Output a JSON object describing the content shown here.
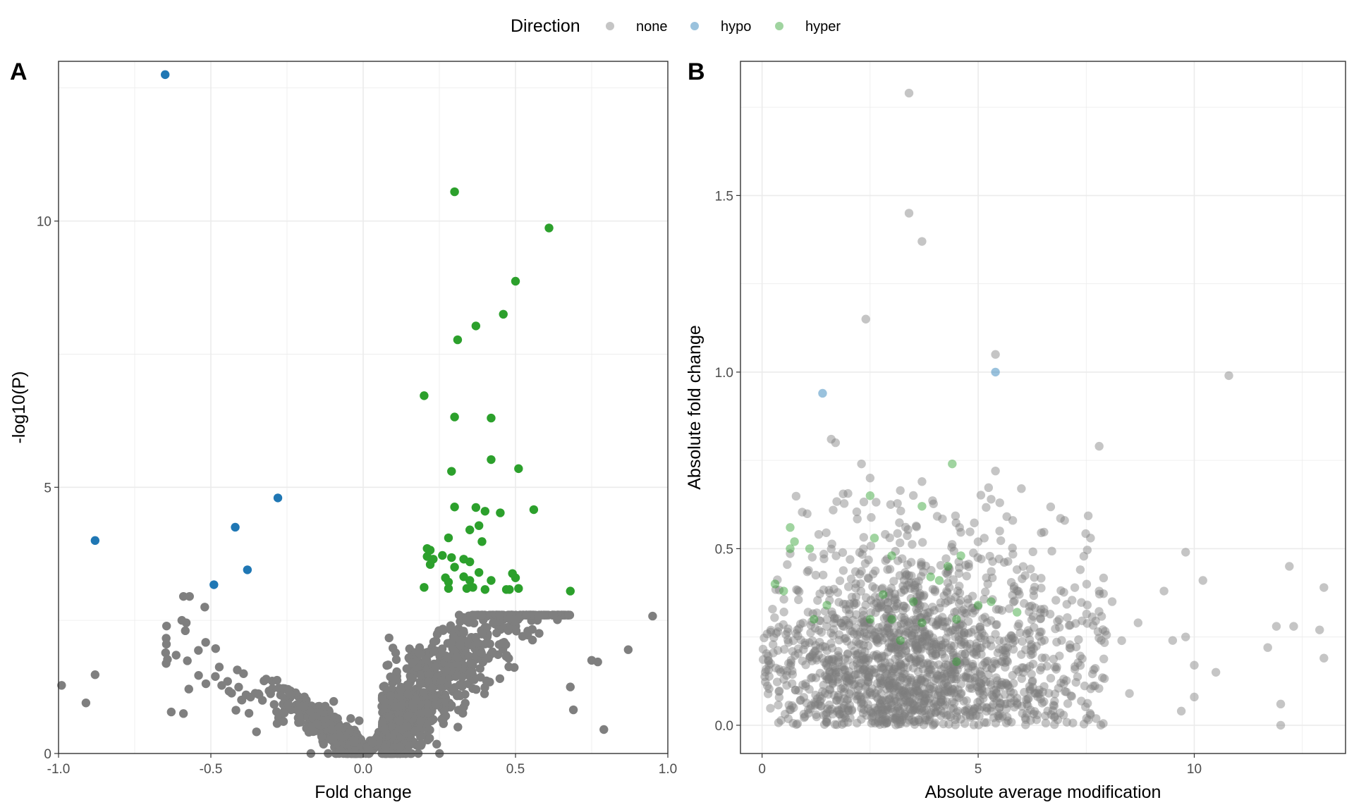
{
  "legend": {
    "title": "Direction",
    "items": [
      {
        "label": "none",
        "color": "#7f7f7f"
      },
      {
        "label": "hypo",
        "color": "#1f77b4"
      },
      {
        "label": "hyper",
        "color": "#2ca02c"
      }
    ],
    "placement": "top-center"
  },
  "chart_data": [
    {
      "panel": "A",
      "type": "scatter",
      "xlabel": "Fold change",
      "ylabel": "-log10(P)",
      "xlim": [
        -1.0,
        1.0
      ],
      "ylim": [
        0,
        13
      ],
      "xticks": [
        -1.0,
        -0.5,
        0.0,
        0.5,
        1.0
      ],
      "xtick_labels": [
        "-1.0",
        "-0.5",
        "0.0",
        "0.5",
        "1.0"
      ],
      "yticks": [
        0,
        5,
        10
      ],
      "ytick_labels": [
        "0",
        "5",
        "10"
      ],
      "grid": true,
      "point_alpha": 1.0,
      "background_cloud": {
        "direction": "none",
        "n": 1400,
        "note": "dense non-significant points forming V shape near origin"
      },
      "series": [
        {
          "name": "hypo",
          "color": "#1f77b4",
          "points": [
            [
              -0.65,
              12.75
            ],
            [
              -0.88,
              4.0
            ],
            [
              -0.42,
              4.25
            ],
            [
              -0.28,
              4.8
            ],
            [
              -0.38,
              3.45
            ],
            [
              -0.49,
              3.17
            ]
          ]
        },
        {
          "name": "hyper",
          "color": "#2ca02c",
          "points": [
            [
              0.3,
              10.55
            ],
            [
              0.61,
              9.87
            ],
            [
              0.5,
              8.87
            ],
            [
              0.46,
              8.25
            ],
            [
              0.37,
              8.03
            ],
            [
              0.31,
              7.77
            ],
            [
              0.2,
              6.72
            ],
            [
              0.3,
              6.32
            ],
            [
              0.42,
              6.3
            ],
            [
              0.42,
              5.52
            ],
            [
              0.51,
              5.35
            ],
            [
              0.29,
              5.3
            ],
            [
              0.3,
              4.63
            ],
            [
              0.37,
              4.62
            ],
            [
              0.4,
              4.55
            ],
            [
              0.45,
              4.52
            ],
            [
              0.56,
              4.58
            ],
            [
              0.38,
              4.28
            ],
            [
              0.35,
              4.2
            ],
            [
              0.28,
              4.05
            ],
            [
              0.39,
              3.98
            ],
            [
              0.21,
              3.85
            ],
            [
              0.22,
              3.82
            ],
            [
              0.21,
              3.7
            ],
            [
              0.23,
              3.65
            ],
            [
              0.26,
              3.72
            ],
            [
              0.29,
              3.68
            ],
            [
              0.33,
              3.65
            ],
            [
              0.35,
              3.6
            ],
            [
              0.22,
              3.55
            ],
            [
              0.3,
              3.5
            ],
            [
              0.38,
              3.4
            ],
            [
              0.33,
              3.32
            ],
            [
              0.49,
              3.38
            ],
            [
              0.27,
              3.3
            ],
            [
              0.5,
              3.3
            ],
            [
              0.28,
              3.22
            ],
            [
              0.35,
              3.25
            ],
            [
              0.42,
              3.25
            ],
            [
              0.2,
              3.12
            ],
            [
              0.28,
              3.1
            ],
            [
              0.34,
              3.1
            ],
            [
              0.36,
              3.12
            ],
            [
              0.4,
              3.08
            ],
            [
              0.47,
              3.08
            ],
            [
              0.48,
              3.08
            ],
            [
              0.51,
              3.1
            ],
            [
              0.68,
              3.05
            ]
          ]
        },
        {
          "name": "none",
          "color": "#7f7f7f",
          "points": [
            [
              -0.99,
              1.28
            ],
            [
              -0.91,
              0.95
            ],
            [
              -0.88,
              1.48
            ],
            [
              -0.59,
              2.95
            ],
            [
              -0.57,
              2.95
            ],
            [
              -0.52,
              2.75
            ],
            [
              -0.63,
              0.78
            ],
            [
              -0.59,
              0.75
            ],
            [
              0.95,
              2.58
            ],
            [
              0.87,
              1.95
            ],
            [
              0.79,
              0.45
            ],
            [
              0.77,
              1.72
            ],
            [
              0.75,
              1.75
            ],
            [
              0.69,
              0.82
            ],
            [
              0.68,
              1.25
            ]
          ]
        }
      ]
    },
    {
      "panel": "B",
      "type": "scatter",
      "xlabel": "Absolute average modification",
      "ylabel": "Absolute fold change",
      "xlim": [
        -0.5,
        13.5
      ],
      "ylim": [
        -0.08,
        1.88
      ],
      "xticks": [
        0,
        5,
        10
      ],
      "xtick_labels": [
        "0",
        "5",
        "10"
      ],
      "yticks": [
        0.0,
        0.5,
        1.0,
        1.5
      ],
      "ytick_labels": [
        "0.0",
        "0.5",
        "1.0",
        "1.5"
      ],
      "grid": true,
      "point_alpha": 0.45,
      "background_cloud": {
        "direction": "none",
        "n": 1700,
        "note": "dense points between x 0-6 and y 0-0.55"
      },
      "series": [
        {
          "name": "none",
          "color": "#7f7f7f",
          "points": [
            [
              3.4,
              1.79
            ],
            [
              3.4,
              1.45
            ],
            [
              3.7,
              1.37
            ],
            [
              2.4,
              1.15
            ],
            [
              5.4,
              1.05
            ],
            [
              10.8,
              0.99
            ],
            [
              1.6,
              0.81
            ],
            [
              1.7,
              0.8
            ],
            [
              7.8,
              0.79
            ],
            [
              2.3,
              0.74
            ],
            [
              5.4,
              0.72
            ],
            [
              2.5,
              0.7
            ],
            [
              3.7,
              0.69
            ],
            [
              6.0,
              0.67
            ],
            [
              5.3,
              0.64
            ],
            [
              5.5,
              0.63
            ],
            [
              7.0,
              0.58
            ],
            [
              5.8,
              0.58
            ],
            [
              7.6,
              0.53
            ],
            [
              9.8,
              0.49
            ],
            [
              12.2,
              0.45
            ],
            [
              10.2,
              0.41
            ],
            [
              7.8,
              0.38
            ],
            [
              13.0,
              0.39
            ],
            [
              8.1,
              0.35
            ],
            [
              9.3,
              0.38
            ],
            [
              8.7,
              0.29
            ],
            [
              11.9,
              0.28
            ],
            [
              12.3,
              0.28
            ],
            [
              12.9,
              0.27
            ],
            [
              11.7,
              0.22
            ],
            [
              13.0,
              0.19
            ],
            [
              9.5,
              0.24
            ],
            [
              9.8,
              0.25
            ],
            [
              10.0,
              0.17
            ],
            [
              10.5,
              0.15
            ],
            [
              10.0,
              0.08
            ],
            [
              12.0,
              0.06
            ],
            [
              12.0,
              0.0
            ],
            [
              9.7,
              0.04
            ],
            [
              8.5,
              0.09
            ],
            [
              7.6,
              0.03
            ]
          ]
        },
        {
          "name": "hypo",
          "color": "#1f77b4",
          "points": [
            [
              1.4,
              0.94
            ],
            [
              5.4,
              1.0
            ]
          ]
        },
        {
          "name": "hyper",
          "color": "#2ca02c",
          "points": [
            [
              4.4,
              0.74
            ],
            [
              2.5,
              0.65
            ],
            [
              3.7,
              0.62
            ],
            [
              0.65,
              0.56
            ],
            [
              0.75,
              0.52
            ],
            [
              2.6,
              0.53
            ],
            [
              1.1,
              0.5
            ],
            [
              0.65,
              0.5
            ],
            [
              3.0,
              0.48
            ],
            [
              4.6,
              0.48
            ],
            [
              0.3,
              0.4
            ],
            [
              0.5,
              0.38
            ],
            [
              4.3,
              0.45
            ],
            [
              3.9,
              0.42
            ],
            [
              4.1,
              0.41
            ],
            [
              3.5,
              0.35
            ],
            [
              5.0,
              0.34
            ],
            [
              5.9,
              0.32
            ],
            [
              4.5,
              0.3
            ],
            [
              3.0,
              0.3
            ],
            [
              2.5,
              0.3
            ],
            [
              1.5,
              0.34
            ],
            [
              3.2,
              0.24
            ],
            [
              4.5,
              0.18
            ],
            [
              3.7,
              0.29
            ],
            [
              2.8,
              0.37
            ],
            [
              5.3,
              0.35
            ],
            [
              1.2,
              0.3
            ]
          ]
        }
      ]
    }
  ]
}
